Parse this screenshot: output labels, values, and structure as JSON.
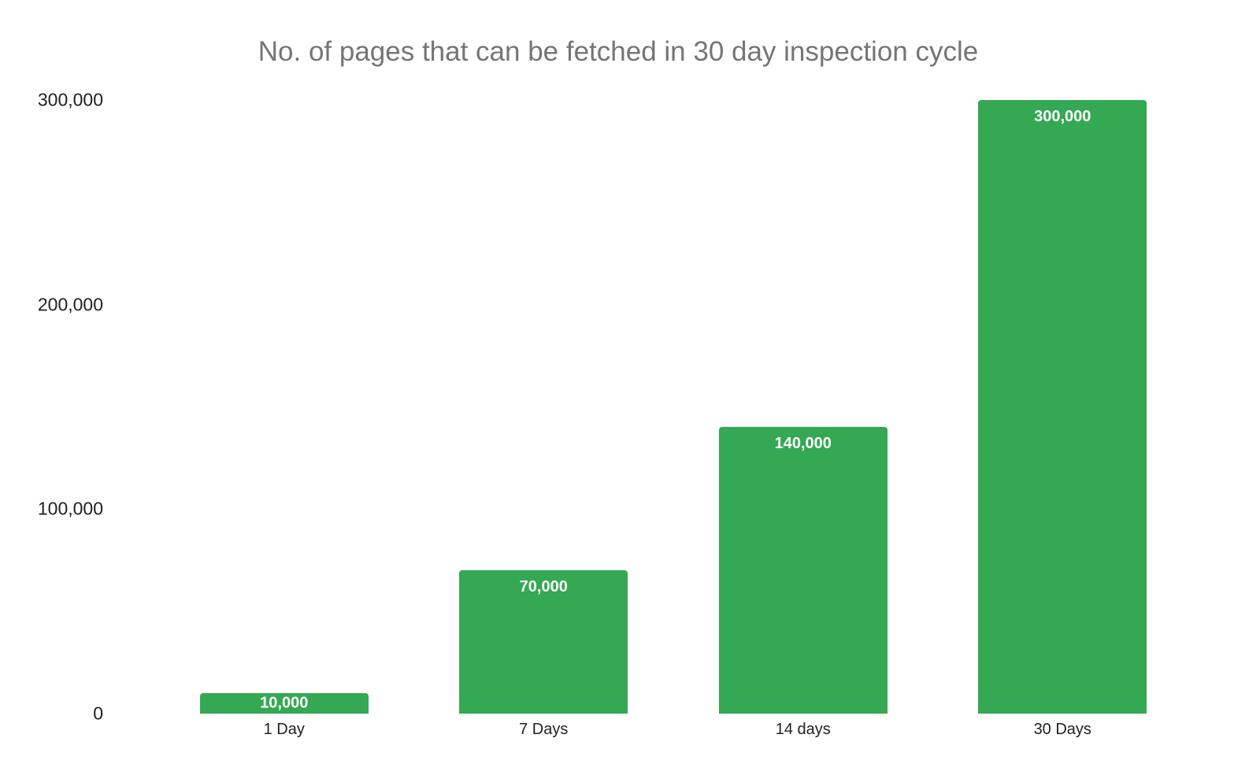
{
  "chart_data": {
    "type": "bar",
    "title": "No. of pages that can be fetched in 30 day inspection cycle",
    "categories": [
      "1 Day",
      "7 Days",
      "14 days",
      "30 Days"
    ],
    "values": [
      10000,
      70000,
      140000,
      300000
    ],
    "data_labels": [
      "10,000",
      "70,000",
      "140,000",
      "300,000"
    ],
    "y_ticks": [
      {
        "value": 0,
        "label": "0"
      },
      {
        "value": 100000,
        "label": "100,000"
      },
      {
        "value": 200000,
        "label": "200,000"
      },
      {
        "value": 300000,
        "label": "300,000"
      }
    ],
    "ylim": [
      0,
      300000
    ],
    "xlabel": "",
    "ylabel": "",
    "legend_position": "none",
    "gridlines": false,
    "colors": {
      "bar": "#34a853",
      "title_text": "#757575",
      "axis_text": "#212121",
      "data_label_text": "#ffffff",
      "background": "#ffffff"
    }
  }
}
